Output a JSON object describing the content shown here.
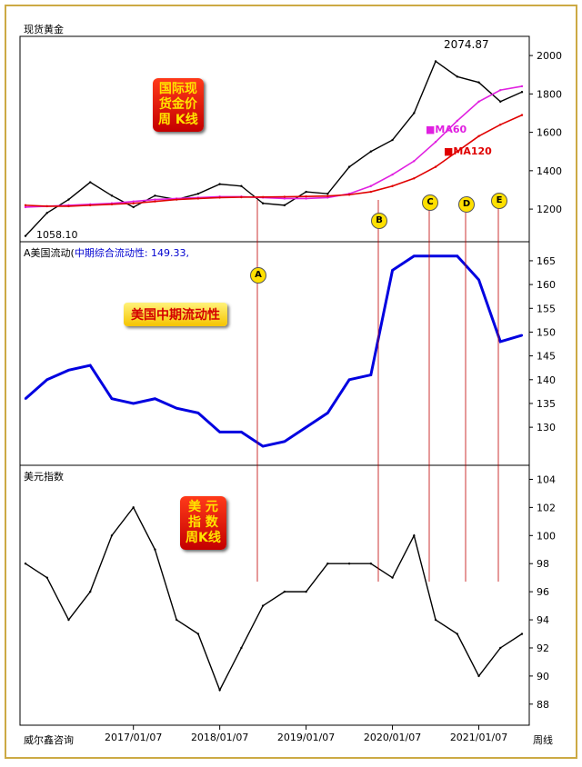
{
  "panels": {
    "gold": {
      "title": "现货黄金",
      "peak_label": "2074.87",
      "low_label": "1058.10",
      "ma60_label": "MA60",
      "ma120_label": "MA120",
      "callout_lines": [
        "国际现",
        "货金价",
        "周 K线"
      ]
    },
    "liquidity": {
      "title_prefix": "A美国流动(",
      "title_series": "中期综合流动性: 149.33,",
      "callout": "美国中期流动性"
    },
    "dxy": {
      "title": "美元指数",
      "callout_lines": [
        "美  元",
        "指  数",
        "周K线"
      ]
    }
  },
  "footer": {
    "left": "威尔鑫咨询",
    "right": "周线"
  },
  "markers": [
    "A",
    "B",
    "C",
    "D",
    "E"
  ],
  "colors": {
    "price": "#000000",
    "ma60": "#e020e0",
    "ma120": "#e00000",
    "liquidity": "#0000e0",
    "marker_line": "#c00000"
  },
  "chart_data": [
    {
      "type": "line",
      "title": "现货黄金",
      "x": [
        "2015/10",
        "2016/01",
        "2016/04",
        "2016/07",
        "2016/10",
        "2017/01",
        "2017/04",
        "2017/07",
        "2017/10",
        "2018/01",
        "2018/04",
        "2018/07",
        "2018/10",
        "2019/01",
        "2019/04",
        "2019/07",
        "2019/10",
        "2020/01",
        "2020/04",
        "2020/07",
        "2020/10",
        "2021/01",
        "2021/04",
        "2021/07"
      ],
      "series": [
        {
          "name": "price",
          "values": [
            1060,
            1180,
            1250,
            1340,
            1270,
            1210,
            1270,
            1250,
            1280,
            1330,
            1320,
            1230,
            1220,
            1290,
            1280,
            1420,
            1500,
            1560,
            1700,
            1970,
            1890,
            1860,
            1760,
            1810
          ]
        },
        {
          "name": "MA60",
          "values": [
            1210,
            1215,
            1220,
            1225,
            1230,
            1240,
            1250,
            1255,
            1260,
            1265,
            1265,
            1260,
            1255,
            1255,
            1260,
            1280,
            1320,
            1380,
            1450,
            1550,
            1660,
            1760,
            1820,
            1840
          ]
        },
        {
          "name": "MA120",
          "values": [
            1220,
            1215,
            1215,
            1220,
            1225,
            1230,
            1240,
            1250,
            1255,
            1260,
            1262,
            1263,
            1264,
            1266,
            1268,
            1275,
            1290,
            1320,
            1360,
            1420,
            1500,
            1580,
            1640,
            1690
          ]
        }
      ],
      "ylim": [
        1030,
        2100
      ],
      "ticks": [
        1200,
        1400,
        1600,
        1800,
        2000
      ],
      "annotations": {
        "high": 2074.87,
        "low": 1058.1
      }
    },
    {
      "type": "line",
      "title": "中期综合流动性",
      "x": [
        "2015/10",
        "2016/01",
        "2016/04",
        "2016/07",
        "2016/10",
        "2017/01",
        "2017/04",
        "2017/07",
        "2017/10",
        "2018/01",
        "2018/04",
        "2018/07",
        "2018/10",
        "2019/01",
        "2019/04",
        "2019/07",
        "2019/10",
        "2020/01",
        "2020/04",
        "2020/07",
        "2020/10",
        "2021/01",
        "2021/04",
        "2021/07"
      ],
      "series": [
        {
          "name": "中期综合流动性",
          "values": [
            136,
            140,
            142,
            143,
            136,
            135,
            136,
            134,
            133,
            129,
            129,
            126,
            127,
            130,
            133,
            140,
            141,
            163,
            166,
            166,
            166,
            161,
            148,
            149.33
          ]
        }
      ],
      "ylim": [
        122,
        169
      ],
      "ticks": [
        130,
        135,
        140,
        145,
        150,
        155,
        160,
        165
      ]
    },
    {
      "type": "line",
      "title": "美元指数",
      "x": [
        "2015/10",
        "2016/01",
        "2016/04",
        "2016/07",
        "2016/10",
        "2017/01",
        "2017/04",
        "2017/07",
        "2017/10",
        "2018/01",
        "2018/04",
        "2018/07",
        "2018/10",
        "2019/01",
        "2019/04",
        "2019/07",
        "2019/10",
        "2020/01",
        "2020/04",
        "2020/07",
        "2020/10",
        "2021/01",
        "2021/04",
        "2021/07"
      ],
      "series": [
        {
          "name": "美元指数",
          "values": [
            98,
            97,
            94,
            96,
            100,
            102,
            99,
            94,
            93,
            89,
            92,
            95,
            96,
            96,
            98,
            98,
            98,
            97,
            100,
            94,
            93,
            90,
            92,
            93
          ]
        }
      ],
      "ylim": [
        86.5,
        105
      ],
      "ticks": [
        88,
        90,
        92,
        94,
        96,
        98,
        100,
        102,
        104
      ]
    }
  ],
  "xaxis_labels": [
    "2017/01/07",
    "2018/01/07",
    "2019/01/07",
    "2020/01/07",
    "2021/01/07"
  ]
}
